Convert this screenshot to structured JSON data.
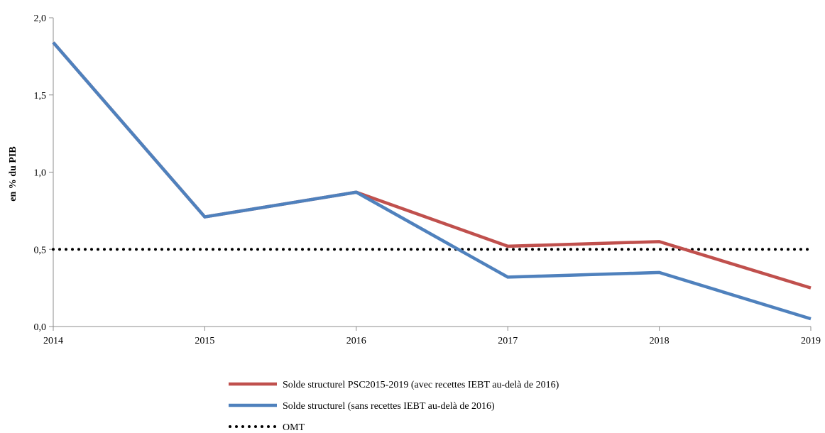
{
  "chart_data": {
    "type": "line",
    "ylabel": "en % du PIB",
    "xlabel": "",
    "x": [
      "2014",
      "2015",
      "2016",
      "2017",
      "2018",
      "2019"
    ],
    "ylim": [
      0,
      2.0
    ],
    "yticks": [
      "0,0",
      "0,5",
      "1,0",
      "1,5",
      "2,0"
    ],
    "ytick_values": [
      0,
      0.5,
      1.0,
      1.5,
      2.0
    ],
    "grid": false,
    "legend_position": "bottom",
    "series": [
      {
        "name": "Solde structurel PSC2015-2019 (avec recettes IEBT au-delà de 2016)",
        "values": [
          1.84,
          0.71,
          0.87,
          0.52,
          0.55,
          0.25
        ],
        "color": "#C0504D",
        "style": "solid"
      },
      {
        "name": "Solde structurel (sans recettes IEBT au-delà de 2016)",
        "values": [
          1.84,
          0.71,
          0.87,
          0.32,
          0.35,
          0.05
        ],
        "color": "#4F81BD",
        "style": "solid"
      },
      {
        "name": "OMT",
        "values": [
          0.5,
          0.5,
          0.5,
          0.5,
          0.5,
          0.5
        ],
        "color": "#000000",
        "style": "dotted"
      }
    ]
  }
}
